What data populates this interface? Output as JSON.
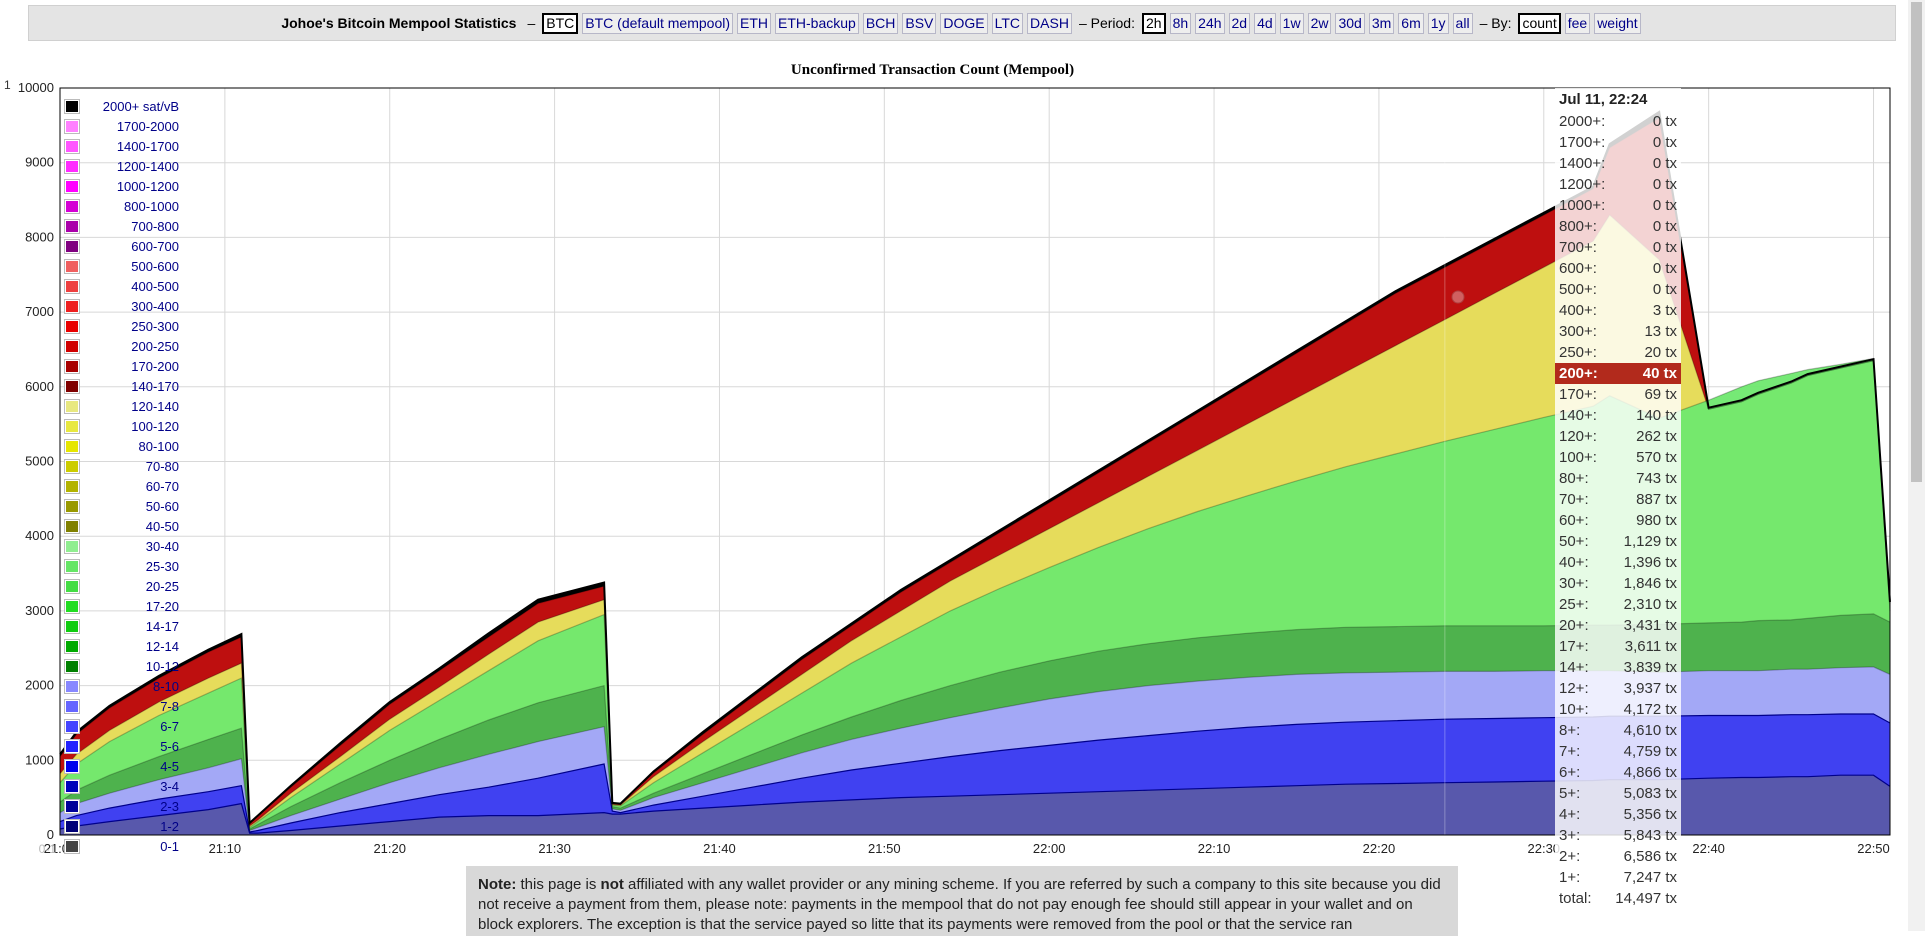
{
  "header": {
    "title": "Johoe's Bitcoin Mempool Statistics",
    "dash": "–",
    "coins": [
      {
        "label": "BTC",
        "active": true
      },
      {
        "label": "BTC (default mempool)",
        "active": false
      },
      {
        "label": "ETH",
        "active": false
      },
      {
        "label": "ETH-backup",
        "active": false
      },
      {
        "label": "BCH",
        "active": false
      },
      {
        "label": "BSV",
        "active": false
      },
      {
        "label": "DOGE",
        "active": false
      },
      {
        "label": "LTC",
        "active": false
      },
      {
        "label": "DASH",
        "active": false
      }
    ],
    "period_label": "– Period:",
    "periods": [
      {
        "label": "2h",
        "active": true
      },
      {
        "label": "8h",
        "active": false
      },
      {
        "label": "24h",
        "active": false
      },
      {
        "label": "2d",
        "active": false
      },
      {
        "label": "4d",
        "active": false
      },
      {
        "label": "1w",
        "active": false
      },
      {
        "label": "2w",
        "active": false
      },
      {
        "label": "30d",
        "active": false
      },
      {
        "label": "3m",
        "active": false
      },
      {
        "label": "6m",
        "active": false
      },
      {
        "label": "1y",
        "active": false
      },
      {
        "label": "all",
        "active": false
      }
    ],
    "by_label": "– By:",
    "by_options": [
      {
        "label": "count",
        "active": true
      },
      {
        "label": "fee",
        "active": false
      },
      {
        "label": "weight",
        "active": false
      }
    ]
  },
  "corner_label": "1",
  "chart_data": {
    "type": "area",
    "title": "Unconfirmed Transaction Count (Mempool)",
    "y_ticks": [
      "0",
      "1000",
      "2000",
      "3000",
      "4000",
      "5000",
      "6000",
      "7000",
      "8000",
      "9000",
      "10000"
    ],
    "ylim": [
      0,
      10000
    ],
    "x_ticks": [
      "21:00",
      "21:10",
      "21:20",
      "21:30",
      "21:40",
      "21:50",
      "22:00",
      "22:10",
      "22:20",
      "22:30",
      "22:40",
      "22:50"
    ],
    "x_tick_minutes": [
      0,
      10,
      20,
      30,
      40,
      50,
      60,
      70,
      80,
      90,
      100,
      110
    ],
    "x_range_minutes": [
      0,
      111
    ],
    "x_tick_overlap_text": "0-1",
    "grid": true,
    "legend_position": "left",
    "legend": [
      {
        "label": "2000+ sat/vB",
        "color": "#000000"
      },
      {
        "label": "1700-2000",
        "color": "#ff80ff"
      },
      {
        "label": "1400-1700",
        "color": "#ff55ff"
      },
      {
        "label": "1200-1400",
        "color": "#ff2bff"
      },
      {
        "label": "1000-1200",
        "color": "#ff00ff"
      },
      {
        "label": "800-1000",
        "color": "#d400d4"
      },
      {
        "label": "700-800",
        "color": "#aa00aa"
      },
      {
        "label": "600-700",
        "color": "#800080"
      },
      {
        "label": "500-600",
        "color": "#f06060"
      },
      {
        "label": "400-500",
        "color": "#ee4040"
      },
      {
        "label": "300-400",
        "color": "#ee2020"
      },
      {
        "label": "250-300",
        "color": "#e80000"
      },
      {
        "label": "200-250",
        "color": "#d00000"
      },
      {
        "label": "170-200",
        "color": "#a80000"
      },
      {
        "label": "140-170",
        "color": "#800000"
      },
      {
        "label": "120-140",
        "color": "#e8e880"
      },
      {
        "label": "100-120",
        "color": "#e8e840"
      },
      {
        "label": "80-100",
        "color": "#e6e600"
      },
      {
        "label": "70-80",
        "color": "#cccc00"
      },
      {
        "label": "60-70",
        "color": "#b3b300"
      },
      {
        "label": "50-60",
        "color": "#999900"
      },
      {
        "label": "40-50",
        "color": "#808000"
      },
      {
        "label": "30-40",
        "color": "#90ee90"
      },
      {
        "label": "25-30",
        "color": "#66e666"
      },
      {
        "label": "20-25",
        "color": "#44dd44"
      },
      {
        "label": "17-20",
        "color": "#22dd22"
      },
      {
        "label": "14-17",
        "color": "#11cc11"
      },
      {
        "label": "12-14",
        "color": "#00aa00"
      },
      {
        "label": "10-12",
        "color": "#008000"
      },
      {
        "label": "8-10",
        "color": "#8888ff"
      },
      {
        "label": "7-8",
        "color": "#6666ff"
      },
      {
        "label": "6-7",
        "color": "#4444ff"
      },
      {
        "label": "5-6",
        "color": "#2222ff"
      },
      {
        "label": "4-5",
        "color": "#0000ee"
      },
      {
        "label": "3-4",
        "color": "#0000bb"
      },
      {
        "label": "2-3",
        "color": "#000099"
      },
      {
        "label": "1-2",
        "color": "#000077"
      },
      {
        "label": "0-1",
        "color": "#444444"
      }
    ],
    "series_colors": {
      "base_dark": "#5a5aa8",
      "blue": "#3b3bf0",
      "light_blue": "#a8a8ff",
      "green_dark": "#4caf4c",
      "green": "#6fe86f",
      "light_green": "#b8f0b8",
      "olive": "#b5b560",
      "yellow": "#e8e860",
      "red": "#c81010",
      "black": "#000000"
    },
    "x": [
      0,
      1,
      3,
      6,
      9,
      11,
      11.5,
      12,
      14,
      17,
      20,
      23,
      26,
      29,
      33,
      33.5,
      34,
      36,
      39,
      42,
      45,
      48,
      51,
      54,
      57,
      60,
      63,
      66,
      69,
      72,
      75,
      78,
      81,
      84,
      87,
      90,
      93,
      94,
      97,
      100,
      102,
      103,
      105,
      106,
      108,
      110,
      111
    ],
    "series": [
      {
        "values": [
          80,
          120,
          180,
          260,
          340,
          420,
          25,
          25,
          60,
          120,
          180,
          240,
          260,
          260,
          300,
          280,
          280,
          320,
          360,
          400,
          440,
          470,
          500,
          520,
          540,
          560,
          580,
          600,
          620,
          640,
          660,
          680,
          690,
          700,
          710,
          720,
          730,
          740,
          740,
          760,
          770,
          770,
          780,
          780,
          800,
          800,
          650
        ]
      },
      {
        "values": [
          180,
          260,
          360,
          480,
          580,
          660,
          40,
          60,
          160,
          300,
          420,
          540,
          640,
          760,
          950,
          320,
          300,
          400,
          520,
          640,
          760,
          870,
          960,
          1050,
          1130,
          1200,
          1270,
          1330,
          1390,
          1440,
          1480,
          1510,
          1530,
          1550,
          1560,
          1570,
          1580,
          1590,
          1590,
          1600,
          1600,
          1600,
          1610,
          1610,
          1620,
          1620,
          1500
        ]
      },
      {
        "values": [
          300,
          420,
          560,
          740,
          900,
          1020,
          60,
          100,
          260,
          480,
          700,
          900,
          1080,
          1250,
          1450,
          350,
          330,
          500,
          700,
          900,
          1100,
          1280,
          1430,
          1570,
          1700,
          1820,
          1920,
          2000,
          2060,
          2110,
          2150,
          2170,
          2180,
          2190,
          2190,
          2200,
          2200,
          2200,
          2180,
          2200,
          2200,
          2200,
          2220,
          2220,
          2240,
          2250,
          2150
        ]
      },
      {
        "values": [
          440,
          600,
          800,
          1050,
          1280,
          1430,
          80,
          140,
          380,
          700,
          1000,
          1280,
          1540,
          1770,
          2000,
          380,
          360,
          560,
          820,
          1080,
          1340,
          1580,
          1800,
          2000,
          2180,
          2330,
          2460,
          2560,
          2640,
          2700,
          2750,
          2780,
          2790,
          2800,
          2800,
          2800,
          2810,
          2810,
          2820,
          2840,
          2850,
          2870,
          2880,
          2900,
          2940,
          2960,
          2850
        ]
      },
      {
        "values": [
          700,
          950,
          1250,
          1600,
          1900,
          2100,
          100,
          180,
          500,
          950,
          1400,
          1800,
          2200,
          2600,
          2950,
          400,
          390,
          700,
          1100,
          1500,
          1900,
          2300,
          2650,
          3000,
          3300,
          3580,
          3850,
          4100,
          4330,
          4540,
          4740,
          4930,
          5100,
          5270,
          5430,
          5590,
          5740,
          5880,
          5580,
          5820,
          6000,
          6080,
          6180,
          6230,
          6300,
          6380,
          3000
        ]
      },
      {
        "values": [
          820,
          1080,
          1400,
          1780,
          2100,
          2300,
          120,
          200,
          560,
          1050,
          1550,
          1980,
          2420,
          2850,
          3150,
          410,
          400,
          780,
          1250,
          1700,
          2150,
          2600,
          3000,
          3400,
          3750,
          4100,
          4450,
          4800,
          5150,
          5500,
          5850,
          6200,
          6550,
          6900,
          7250,
          7600,
          7950,
          8300,
          7700,
          5700,
          5800,
          5900,
          6050,
          6150,
          6250,
          6350,
          3100
        ]
      },
      {
        "values": [
          1050,
          1350,
          1700,
          2100,
          2450,
          2650,
          150,
          250,
          640,
          1200,
          1750,
          2200,
          2650,
          3100,
          3330,
          420,
          410,
          830,
          1350,
          1850,
          2350,
          2800,
          3250,
          3650,
          4050,
          4450,
          4850,
          5250,
          5650,
          6050,
          6450,
          6850,
          7250,
          7600,
          7950,
          8300,
          8650,
          9200,
          9600,
          5700,
          5800,
          5900,
          6050,
          6150,
          6250,
          6350,
          3100
        ]
      },
      {
        "values": [
          1080,
          1380,
          1730,
          2130,
          2480,
          2690,
          160,
          260,
          660,
          1230,
          1780,
          2230,
          2700,
          3150,
          3380,
          430,
          420,
          850,
          1380,
          1880,
          2380,
          2830,
          3280,
          3680,
          4080,
          4480,
          4880,
          5280,
          5680,
          6080,
          6480,
          6880,
          7280,
          7630,
          7980,
          8330,
          8680,
          9250,
          9680,
          5720,
          5820,
          5920,
          6070,
          6170,
          6270,
          6370,
          3120
        ]
      }
    ]
  },
  "tooltip": {
    "date": "Jul 11, 22:24",
    "rows": [
      {
        "label": "2000+:",
        "value": "0 tx"
      },
      {
        "label": "1700+:",
        "value": "0 tx"
      },
      {
        "label": "1400+:",
        "value": "0 tx"
      },
      {
        "label": "1200+:",
        "value": "0 tx"
      },
      {
        "label": "1000+:",
        "value": "0 tx"
      },
      {
        "label": "800+:",
        "value": "0 tx"
      },
      {
        "label": "700+:",
        "value": "0 tx"
      },
      {
        "label": "600+:",
        "value": "0 tx"
      },
      {
        "label": "500+:",
        "value": "0 tx"
      },
      {
        "label": "400+:",
        "value": "3 tx"
      },
      {
        "label": "300+:",
        "value": "13 tx"
      },
      {
        "label": "250+:",
        "value": "20 tx"
      },
      {
        "label": "200+:",
        "value": "40 tx",
        "highlight": true
      },
      {
        "label": "170+:",
        "value": "69 tx"
      },
      {
        "label": "140+:",
        "value": "140 tx"
      },
      {
        "label": "120+:",
        "value": "262 tx"
      },
      {
        "label": "100+:",
        "value": "570 tx"
      },
      {
        "label": "80+:",
        "value": "743 tx"
      },
      {
        "label": "70+:",
        "value": "887 tx"
      },
      {
        "label": "60+:",
        "value": "980 tx"
      },
      {
        "label": "50+:",
        "value": "1,129 tx"
      },
      {
        "label": "40+:",
        "value": "1,396 tx"
      },
      {
        "label": "30+:",
        "value": "1,846 tx"
      },
      {
        "label": "25+:",
        "value": "2,310 tx"
      },
      {
        "label": "20+:",
        "value": "3,431 tx"
      },
      {
        "label": "17+:",
        "value": "3,611 tx"
      },
      {
        "label": "14+:",
        "value": "3,839 tx"
      },
      {
        "label": "12+:",
        "value": "3,937 tx"
      },
      {
        "label": "10+:",
        "value": "4,172 tx"
      },
      {
        "label": "8+:",
        "value": "4,610 tx"
      },
      {
        "label": "7+:",
        "value": "4,759 tx"
      },
      {
        "label": "6+:",
        "value": "4,866 tx"
      },
      {
        "label": "5+:",
        "value": "5,083 tx"
      },
      {
        "label": "4+:",
        "value": "5,356 tx"
      },
      {
        "label": "3+:",
        "value": "5,843 tx"
      },
      {
        "label": "2+:",
        "value": "6,586 tx"
      },
      {
        "label": "1+:",
        "value": "7,247 tx"
      },
      {
        "label": "total:",
        "value": "14,497 tx"
      }
    ]
  },
  "note": {
    "prefix": "Note:",
    "t1": " this page is ",
    "not": "not",
    "t2": " affiliated with any wallet provider or any mining scheme. If you are referred by such a company to this site because you did not receive a payment from them, please note: payments in the mempool that do not pay enough fee should still appear in your wallet and on block explorers. The exception is that the service payed so litte that its payments were removed from the pool or that the service ran"
  }
}
